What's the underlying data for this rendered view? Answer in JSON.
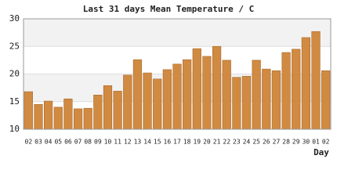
{
  "chart_data": {
    "type": "bar",
    "title": "Last 31 days Mean Temperature / C",
    "x_label": "Day",
    "categories": [
      "02",
      "03",
      "04",
      "05",
      "06",
      "07",
      "08",
      "09",
      "10",
      "11",
      "12",
      "13",
      "14",
      "15",
      "16",
      "17",
      "18",
      "19",
      "20",
      "21",
      "22",
      "23",
      "24",
      "25",
      "26",
      "27",
      "28",
      "29",
      "30",
      "01",
      "02"
    ],
    "values": [
      16.8,
      14.5,
      15.1,
      14.0,
      15.5,
      13.7,
      13.8,
      16.2,
      17.9,
      16.9,
      19.8,
      22.6,
      20.2,
      19.1,
      20.8,
      21.8,
      22.6,
      24.6,
      23.2,
      25.0,
      22.5,
      19.4,
      19.6,
      22.5,
      20.9,
      20.6,
      23.9,
      24.5,
      26.6,
      27.7,
      20.6
    ],
    "color": "#d08a42",
    "ylim": [
      10,
      30
    ],
    "yticks": [
      10,
      15,
      20,
      25,
      30
    ],
    "grid": true
  }
}
